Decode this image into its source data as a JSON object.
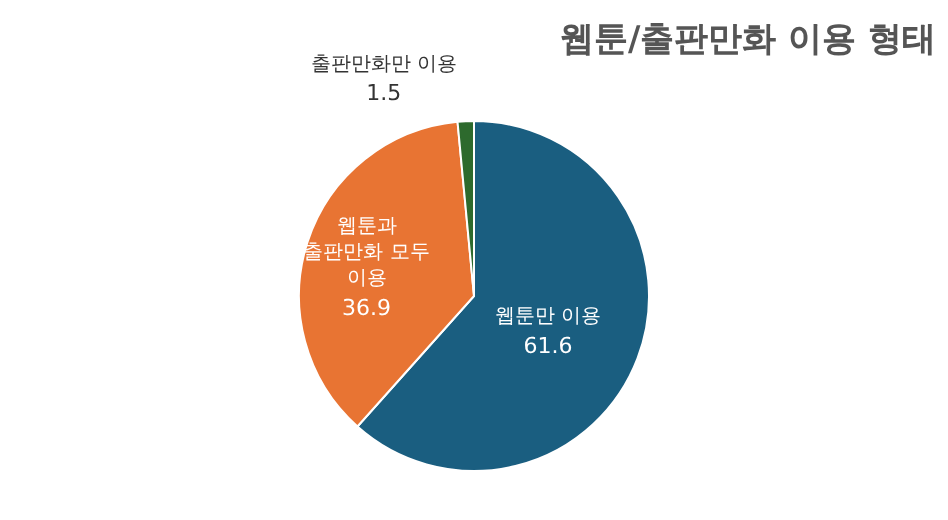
{
  "chart_data": {
    "type": "pie",
    "title": "웹툰/출판만화 이용 형태",
    "categories": [
      "웹툰만 이용",
      "웹툰과 출판만화 모두 이용",
      "출판만화만 이용"
    ],
    "values": [
      61.6,
      36.9,
      1.5
    ],
    "colors": [
      "#1a5e80",
      "#e87433",
      "#2d6a2d"
    ],
    "data_labels": true,
    "legend": false
  }
}
